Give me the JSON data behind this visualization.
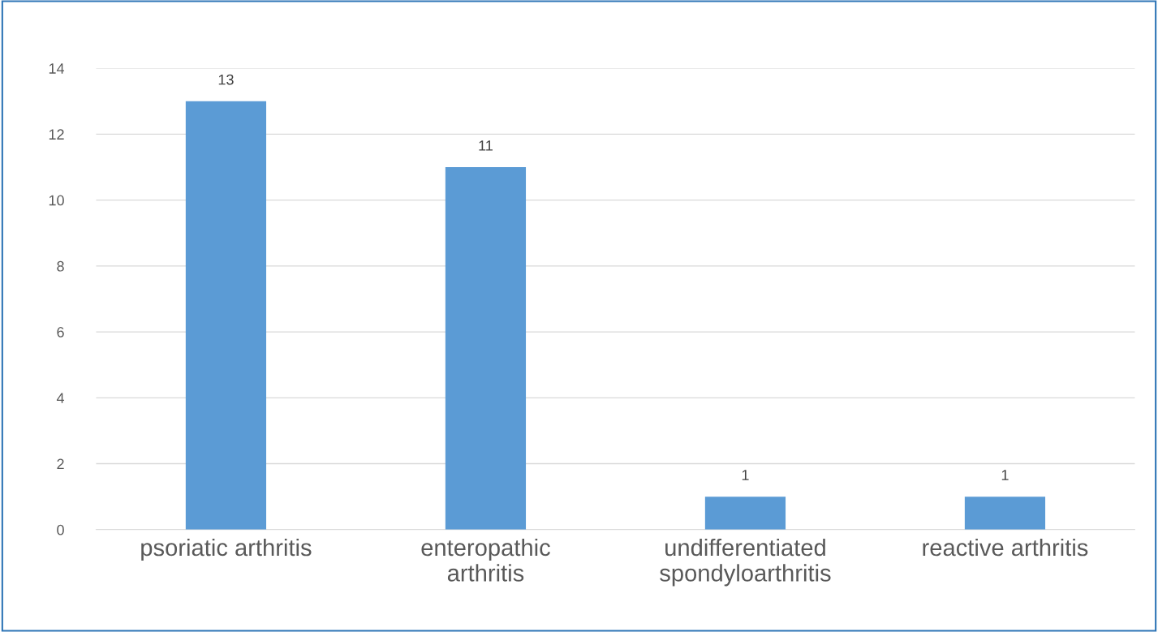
{
  "chart_data": {
    "type": "bar",
    "categories": [
      "psoriatic arthritis",
      "enteropathic\narthritis",
      "undifferentiated\nspondyloarthritis",
      "reactive arthritis"
    ],
    "values": [
      13,
      11,
      1,
      1
    ],
    "color": "#5b9bd5",
    "ylim": [
      0,
      14
    ],
    "yticks": [
      0,
      2,
      4,
      6,
      8,
      10,
      12,
      14
    ],
    "grid": "y",
    "data_labels": true
  }
}
